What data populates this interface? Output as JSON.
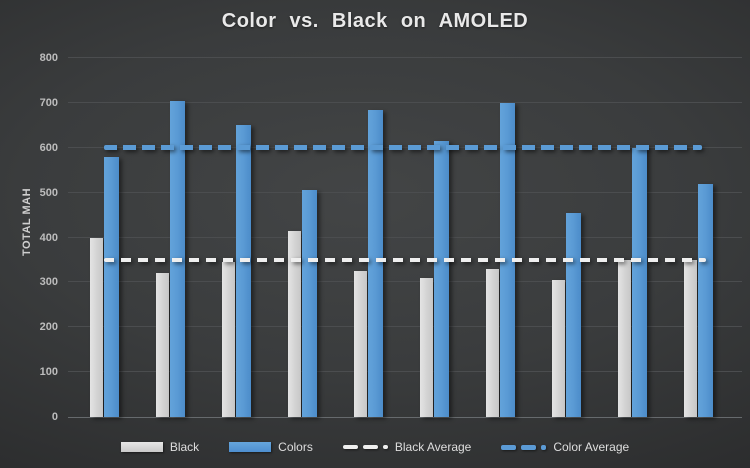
{
  "title": "Color vs. Black on AMOLED",
  "colors": {
    "accent_blue": "#5b9bd5",
    "bar_gray": "#d6d6d6",
    "avg_line_white": "#efefef",
    "background_center": "#434546",
    "background_edge": "#1f2021",
    "gridline": "#4b4d4f",
    "tick_text": "#bdbdbd",
    "title_text": "#e9e9e9",
    "legend_text": "#dedede"
  },
  "chart_data": {
    "type": "bar",
    "title": "Color vs. Black on AMOLED",
    "xlabel": "",
    "ylabel": "TOTAL MAH",
    "ylim": [
      0,
      800
    ],
    "ytick_step": 100,
    "ytick_labels": [
      "0",
      "100",
      "200",
      "300",
      "400",
      "500",
      "600",
      "700",
      "800"
    ],
    "grid": true,
    "legend_position": "bottom",
    "group_count": 10,
    "categories": [
      "",
      "",
      "",
      "",
      "",
      "",
      "",
      "",
      "",
      ""
    ],
    "series": [
      {
        "name": "Black",
        "type": "bar",
        "color": "#d6d6d6",
        "values": [
          400,
          320,
          345,
          415,
          325,
          310,
          330,
          305,
          350,
          350
        ]
      },
      {
        "name": "Colors",
        "type": "bar",
        "color": "#5b9bd5",
        "values": [
          580,
          705,
          650,
          505,
          685,
          615,
          700,
          455,
          600,
          520
        ]
      },
      {
        "name": "Black Average",
        "type": "dashed-line",
        "color": "#efefef",
        "value": 350
      },
      {
        "name": "Color Average",
        "type": "dashed-line",
        "color": "#5b9bd5",
        "value": 600
      }
    ]
  }
}
